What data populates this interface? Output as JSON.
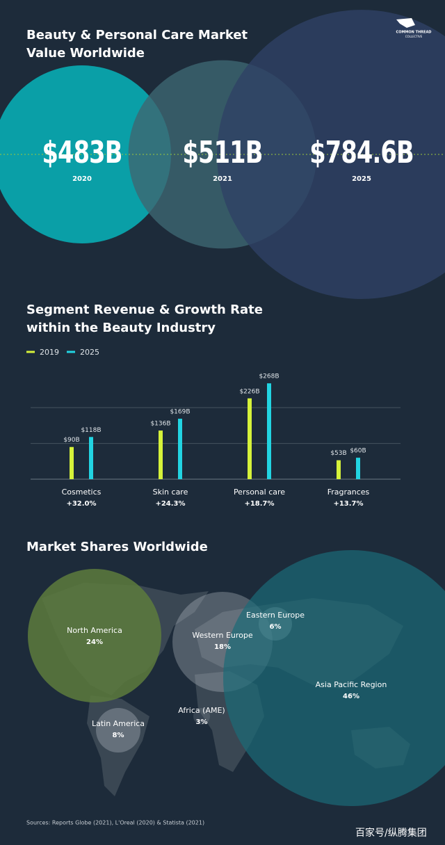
{
  "brand": [
    "COMMON THREAD",
    "COLLECTIVE"
  ],
  "chart_data": [
    {
      "type": "bubble",
      "title": "Beauty & Personal Care Market Value Worldwide",
      "categories": [
        "2020",
        "2021",
        "2025"
      ],
      "values": [
        483,
        511,
        784.6
      ],
      "value_labels": [
        "$483B",
        "$511B",
        "$784.6B"
      ],
      "colors": [
        "#0aa5ad",
        "#3d6672",
        "#2f4165"
      ]
    },
    {
      "type": "bar",
      "title": "Segment Revenue & Growth Rate within the Beauty Industry",
      "categories": [
        "Cosmetics",
        "Skin care",
        "Personal care",
        "Fragrances"
      ],
      "series": [
        {
          "name": "2019",
          "color": "#d6f23a",
          "values": [
            90,
            136,
            226,
            53
          ],
          "value_labels": [
            "$90B",
            "$136B",
            "$226B",
            "$53B"
          ]
        },
        {
          "name": "2025",
          "color": "#22d4e2",
          "values": [
            118,
            169,
            268,
            60
          ],
          "value_labels": [
            "$118B",
            "$169B",
            "$268B",
            "$60B"
          ]
        }
      ],
      "growth_rate": {
        "values": [
          32.0,
          24.3,
          18.7,
          13.7
        ],
        "value_labels": [
          "+32.0%",
          "+24.3%",
          "+18.7%",
          "+13.7%"
        ]
      },
      "ylim": [
        0,
        280
      ],
      "yticks": [
        0,
        100,
        200
      ],
      "grid": true,
      "legend": "top-left"
    },
    {
      "type": "bubble-map",
      "title": "Market Shares Worldwide",
      "categories": [
        "North America",
        "Western Europe",
        "Eastern Europe",
        "Asia Pacific Region",
        "Africa (AME)",
        "Latin America"
      ],
      "values": [
        24,
        18,
        6,
        46,
        3,
        8
      ],
      "value_labels": [
        "24%",
        "18%",
        "6%",
        "46%",
        "3%",
        "8%"
      ],
      "colors": [
        "#5d7b3d",
        "#c9d2d8",
        "#dfe5e8",
        "#1b6b78",
        "#c9d2d8",
        "#c9d2d8"
      ]
    }
  ],
  "footer": {
    "sources": "Sources: Reports Globe (2021), L'Oreal (2020) & Statista (2021)",
    "watermark": "百家号/纵腾集团"
  }
}
